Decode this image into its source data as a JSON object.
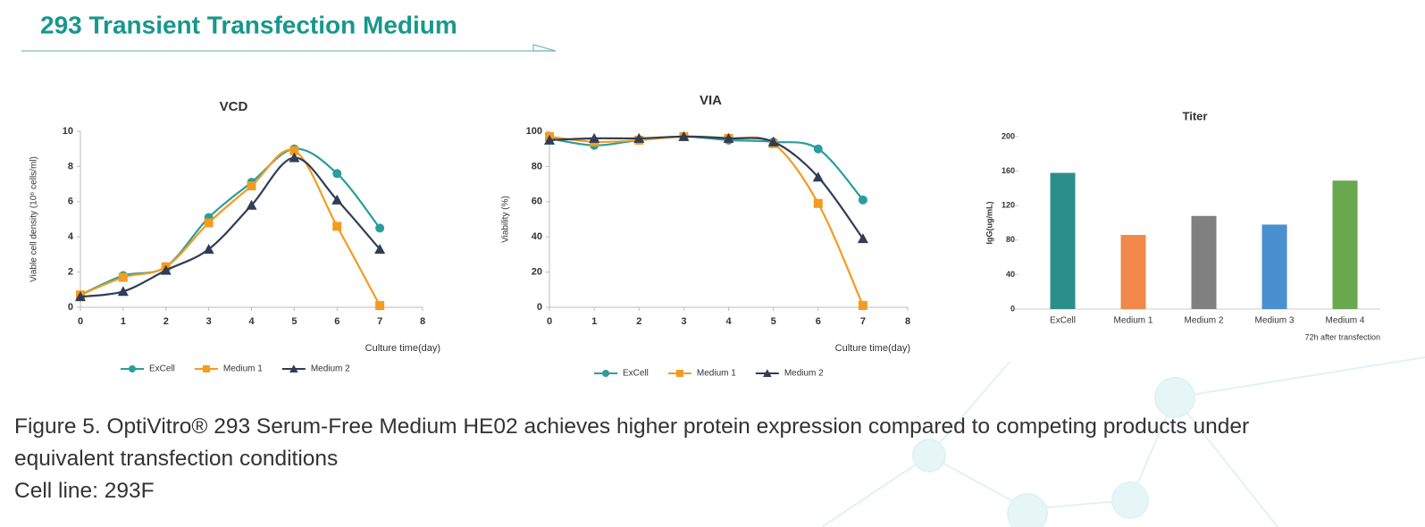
{
  "header": {
    "title": "293  Transient  Transfection Medium"
  },
  "caption": [
    "Figure 5. OptiVitro® 293 Serum-Free Medium HE02 achieves higher protein expression compared to competing products under equivalent transfection conditions",
    "Cell line: 293F"
  ],
  "chart_data": [
    {
      "type": "line",
      "title": "VCD",
      "x_label": "Culture time(day)",
      "y_label": "Viable cell density (10⁶ cells/ml)",
      "x": [
        0,
        1,
        2,
        3,
        4,
        5,
        6,
        7
      ],
      "xlim": [
        0,
        8
      ],
      "xticks": [
        0,
        1,
        2,
        3,
        4,
        5,
        6,
        7,
        8
      ],
      "ylim": [
        0,
        10
      ],
      "yticks": [
        0,
        2,
        4,
        6,
        8,
        10
      ],
      "legend": "bottom",
      "smooth": true,
      "series": [
        {
          "name": "ExCell",
          "color": "#2a9d9c",
          "marker": "circle",
          "values": [
            0.7,
            1.8,
            2.3,
            5.1,
            7.1,
            9.0,
            7.6,
            4.5
          ]
        },
        {
          "name": "Medium 1",
          "color": "#f39c1f",
          "marker": "square",
          "values": [
            0.7,
            1.7,
            2.3,
            4.8,
            6.9,
            8.9,
            4.6,
            0.1
          ]
        },
        {
          "name": "Medium 2",
          "color": "#2f3d57",
          "marker": "triangle",
          "values": [
            0.6,
            0.9,
            2.1,
            3.3,
            5.8,
            8.5,
            6.1,
            3.3
          ]
        }
      ]
    },
    {
      "type": "line",
      "title": "VIA",
      "x_label": "Culture time(day)",
      "y_label": "Viability (%)",
      "x": [
        0,
        1,
        2,
        3,
        4,
        5,
        6,
        7
      ],
      "xlim": [
        0,
        8
      ],
      "xticks": [
        0,
        1,
        2,
        3,
        4,
        5,
        6,
        7,
        8
      ],
      "ylim": [
        0,
        100
      ],
      "yticks": [
        0,
        20,
        40,
        60,
        80,
        100
      ],
      "legend": "bottom",
      "smooth": true,
      "series": [
        {
          "name": "ExCell",
          "color": "#2a9d9c",
          "marker": "circle",
          "values": [
            96,
            92,
            95,
            97,
            95,
            94,
            90,
            61
          ]
        },
        {
          "name": "Medium 1",
          "color": "#f39c1f",
          "marker": "square",
          "values": [
            97,
            94,
            95,
            97,
            96,
            93,
            59,
            1
          ]
        },
        {
          "name": "Medium 2",
          "color": "#2f3d57",
          "marker": "triangle",
          "values": [
            95,
            96,
            96,
            97,
            96,
            94,
            74,
            39
          ]
        }
      ]
    },
    {
      "type": "bar",
      "title": "Titer",
      "y_label": "IgG(ug/mL)",
      "note": "72h after transfection",
      "categories": [
        "ExCell",
        "Medium 1",
        "Medium 2",
        "Medium 3",
        "Medium 4"
      ],
      "values": [
        158,
        86,
        108,
        98,
        149
      ],
      "colors": [
        "#2a8f8a",
        "#f0894a",
        "#808080",
        "#4a8fd0",
        "#6aa84f"
      ],
      "ylim": [
        0,
        200
      ],
      "yticks": [
        0,
        40,
        80,
        120,
        160,
        200
      ]
    }
  ]
}
